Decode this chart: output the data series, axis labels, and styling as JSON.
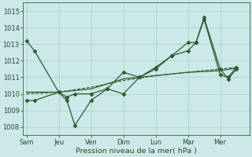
{
  "xlabel": "Pression niveau de la mer( hPa )",
  "background_color": "#cce8e8",
  "grid_color": "#aacccc",
  "line_color": "#2d5a2d",
  "x_labels": [
    "Sam",
    "Jeu",
    "Ven",
    "Dim",
    "Lun",
    "Mar",
    "Mer"
  ],
  "x_tick_pos": [
    0,
    2,
    4,
    6,
    8,
    10,
    12
  ],
  "xlim": [
    -0.2,
    13.8
  ],
  "ylim": [
    1007.5,
    1015.5
  ],
  "yticks": [
    1008,
    1009,
    1010,
    1011,
    1012,
    1013,
    1014,
    1015
  ],
  "series": [
    {
      "name": "line1_high_start",
      "x": [
        0,
        0.5,
        2,
        2.5,
        3,
        4,
        5,
        6,
        7,
        8,
        9,
        10,
        10.5,
        11,
        12,
        12.5,
        13
      ],
      "y": [
        1013.2,
        1012.6,
        1010.1,
        1009.6,
        1008.1,
        1009.6,
        1010.3,
        1010.0,
        1011.0,
        1011.5,
        1012.3,
        1013.1,
        1013.1,
        1014.6,
        1011.5,
        1010.9,
        1011.5
      ],
      "marker": "D",
      "markersize": 2.5,
      "linewidth": 0.9,
      "linestyle": "-"
    },
    {
      "name": "line2_low_start",
      "x": [
        0,
        0.5,
        2,
        2.5,
        3,
        4,
        5,
        6,
        7,
        8,
        9,
        10,
        10.5,
        11,
        12,
        12.5,
        13
      ],
      "y": [
        1009.6,
        1009.6,
        1010.1,
        1009.8,
        1010.0,
        1010.0,
        1010.3,
        1011.3,
        1011.0,
        1011.6,
        1012.3,
        1012.6,
        1013.1,
        1014.5,
        1011.15,
        1011.0,
        1011.6
      ],
      "marker": "D",
      "markersize": 2.5,
      "linewidth": 0.9,
      "linestyle": "-"
    },
    {
      "name": "line3_smooth",
      "x": [
        0,
        2,
        4,
        6,
        8,
        10,
        12,
        13
      ],
      "y": [
        1010.1,
        1010.1,
        1010.3,
        1010.9,
        1011.1,
        1011.3,
        1011.4,
        1011.55
      ],
      "marker": null,
      "markersize": 0,
      "linewidth": 0.9,
      "linestyle": "-"
    },
    {
      "name": "line4_dashed",
      "x": [
        0,
        2,
        4,
        6,
        8,
        10,
        12,
        13
      ],
      "y": [
        1010.0,
        1010.1,
        1010.4,
        1010.8,
        1011.1,
        1011.3,
        1011.5,
        1011.6
      ],
      "marker": null,
      "markersize": 0,
      "linewidth": 0.8,
      "linestyle": "--"
    }
  ]
}
